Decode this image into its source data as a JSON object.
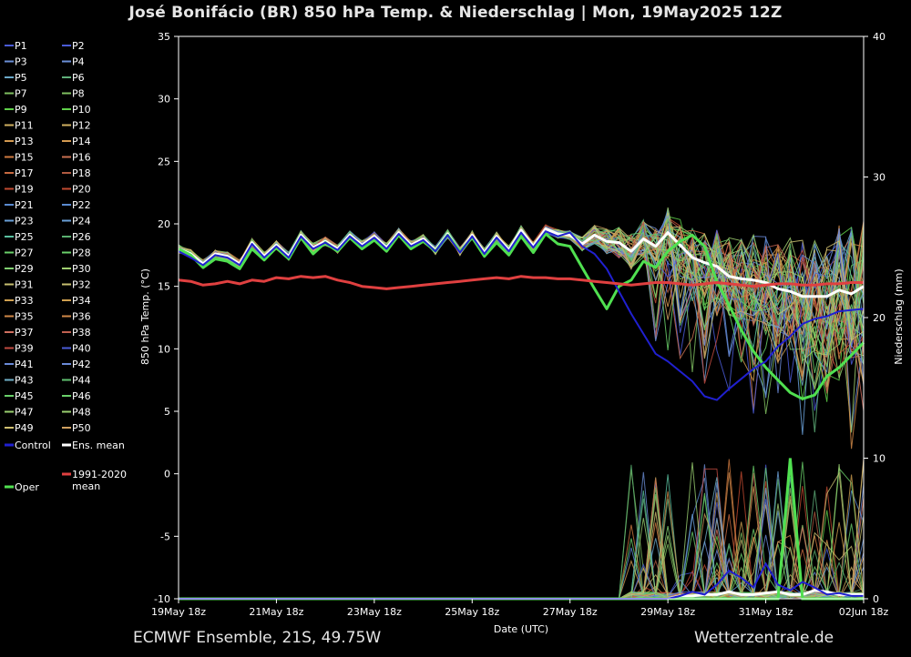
{
  "chart_data": {
    "type": "line",
    "title": "José Bonifácio  (BR)  850 hPa Temp. & Niederschlag | Mon, 19May2025 12Z",
    "xlabel": "Date (UTC)",
    "ylabel": "850 hPa Temp. (°C)",
    "y2label": "Niederschlag (mm)",
    "ylim": [
      -10,
      35
    ],
    "y2lim": [
      0,
      40
    ],
    "yticks": [
      "35",
      "30",
      "25",
      "20",
      "15",
      "10",
      "5",
      "0",
      "-5",
      "-10"
    ],
    "y2ticks": [
      "40",
      "30",
      "20",
      "10",
      "0"
    ],
    "x_steps": 56,
    "step_hours": 6,
    "xtick_labels": [
      "19May 18z",
      "21May 18z",
      "23May 18z",
      "25May 18z",
      "27May 18z",
      "29May 18z",
      "31May 18z",
      "02Jun 18z"
    ],
    "xtick_steps": [
      0,
      8,
      16,
      24,
      32,
      40,
      48,
      56
    ],
    "legend": [
      {
        "label": "P1",
        "color": "#4a5bd6"
      },
      {
        "label": "P2",
        "color": "#4a5bd6"
      },
      {
        "label": "P3",
        "color": "#6b8fd8"
      },
      {
        "label": "P4",
        "color": "#6b8fd8"
      },
      {
        "label": "P5",
        "color": "#6aa8c8"
      },
      {
        "label": "P6",
        "color": "#5fb07a"
      },
      {
        "label": "P7",
        "color": "#7fc060"
      },
      {
        "label": "P8",
        "color": "#7fc060"
      },
      {
        "label": "P9",
        "color": "#5fd04a"
      },
      {
        "label": "P10",
        "color": "#5fd04a"
      },
      {
        "label": "P11",
        "color": "#d0b060"
      },
      {
        "label": "P12",
        "color": "#d0b060"
      },
      {
        "label": "P13",
        "color": "#d49a50"
      },
      {
        "label": "P14",
        "color": "#d49a50"
      },
      {
        "label": "P15",
        "color": "#d07a40"
      },
      {
        "label": "P16",
        "color": "#c87050"
      },
      {
        "label": "P17",
        "color": "#c86a40"
      },
      {
        "label": "P18",
        "color": "#b05a40"
      },
      {
        "label": "P19",
        "color": "#c04a30"
      },
      {
        "label": "P20",
        "color": "#c04a30"
      },
      {
        "label": "P21",
        "color": "#5a8ad0"
      },
      {
        "label": "P22",
        "color": "#5a8ad0"
      },
      {
        "label": "P23",
        "color": "#6aa0d8"
      },
      {
        "label": "P24",
        "color": "#6aa0d8"
      },
      {
        "label": "P25",
        "color": "#5ac0a0"
      },
      {
        "label": "P26",
        "color": "#5ab070"
      },
      {
        "label": "P27",
        "color": "#6ad06a"
      },
      {
        "label": "P28",
        "color": "#6ad06a"
      },
      {
        "label": "P29",
        "color": "#80d070"
      },
      {
        "label": "P30",
        "color": "#a0d070"
      },
      {
        "label": "P31",
        "color": "#c8c070"
      },
      {
        "label": "P32",
        "color": "#c8c070"
      },
      {
        "label": "P33",
        "color": "#d0a050"
      },
      {
        "label": "P34",
        "color": "#d0a050"
      },
      {
        "label": "P35",
        "color": "#d08848"
      },
      {
        "label": "P36",
        "color": "#d08848"
      },
      {
        "label": "P37",
        "color": "#d07060"
      },
      {
        "label": "P38",
        "color": "#c06050"
      },
      {
        "label": "P39",
        "color": "#c04a40"
      },
      {
        "label": "P40",
        "color": "#4a5bd6"
      },
      {
        "label": "P41",
        "color": "#6a8ad8"
      },
      {
        "label": "P42",
        "color": "#6a8ad8"
      },
      {
        "label": "P43",
        "color": "#70b0c8"
      },
      {
        "label": "P44",
        "color": "#5fc070"
      },
      {
        "label": "P45",
        "color": "#6ad06a"
      },
      {
        "label": "P46",
        "color": "#6ad06a"
      },
      {
        "label": "P47",
        "color": "#9ad070"
      },
      {
        "label": "P48",
        "color": "#9ad070"
      },
      {
        "label": "P49",
        "color": "#d0c070"
      },
      {
        "label": "P50",
        "color": "#d0a060"
      }
    ],
    "special_legend": [
      {
        "label": "Control",
        "color": "#2020d0"
      },
      {
        "label": "Ens. mean",
        "color": "#ffffff"
      },
      {
        "label": "1991-2020 mean",
        "color": "#e04040"
      },
      {
        "label": "Oper",
        "color": "#50e050"
      }
    ],
    "series": [
      {
        "name": "Ens. mean",
        "color": "#ffffff",
        "values": [
          18,
          17.6,
          16.8,
          17.6,
          17.4,
          16.8,
          18.5,
          17.4,
          18.3,
          17.4,
          19.1,
          18.1,
          18.6,
          18.0,
          19.1,
          18.3,
          19.0,
          18.1,
          19.3,
          18.3,
          18.8,
          17.9,
          19.2,
          17.8,
          19.1,
          17.7,
          19.0,
          17.9,
          19.5,
          18.2,
          19.6,
          19.2,
          19.1,
          18.4,
          19.1,
          18.6,
          18.5,
          17.8,
          18.8,
          18.2,
          19.3,
          18.3,
          17.3,
          16.9,
          16.6,
          15.8,
          15.6,
          15.5,
          15.3,
          14.8,
          14.6,
          14.2,
          14.2,
          14.2,
          14.7,
          14.4,
          15.0
        ],
        "precip": [
          0,
          0,
          0,
          0,
          0,
          0,
          0,
          0,
          0,
          0,
          0,
          0,
          0,
          0,
          0,
          0,
          0,
          0,
          0,
          0,
          0,
          0,
          0,
          0,
          0,
          0,
          0,
          0,
          0,
          0,
          0,
          0,
          0,
          0,
          0,
          0,
          0,
          0,
          0,
          0,
          0,
          0.2,
          0.2,
          0.3,
          0.3,
          0.5,
          0.3,
          0.3,
          0.4,
          0.5,
          0.3,
          0.3,
          0.6,
          0.5,
          0.3,
          0.3,
          0.3
        ]
      },
      {
        "name": "Oper",
        "color": "#50e050",
        "values": [
          18.0,
          17.5,
          16.5,
          17.2,
          17.0,
          16.4,
          18.0,
          17.1,
          18.1,
          17.2,
          18.9,
          17.6,
          18.5,
          17.8,
          18.9,
          18.0,
          18.7,
          17.8,
          19.1,
          18.0,
          18.6,
          17.8,
          19.1,
          17.8,
          18.9,
          17.4,
          18.5,
          17.5,
          19.0,
          17.7,
          19.2,
          18.4,
          18.2,
          16.5,
          14.8,
          13.2,
          15.0,
          15.5,
          17.0,
          16.5,
          17.8,
          18.6,
          19.1,
          18.2,
          15.4,
          13.5,
          11.5,
          9.8,
          8.5,
          7.5,
          6.5,
          6.0,
          6.3,
          7.8,
          8.5,
          9.5,
          10.5
        ],
        "precip": [
          0,
          0,
          0,
          0,
          0,
          0,
          0,
          0,
          0,
          0,
          0,
          0,
          0,
          0,
          0,
          0,
          0,
          0,
          0,
          0,
          0,
          0,
          0,
          0,
          0,
          0,
          0,
          0,
          0,
          0,
          0,
          0,
          0,
          0,
          0,
          0,
          0,
          0,
          0,
          0,
          0,
          0,
          0,
          0,
          0,
          0,
          0,
          0,
          0,
          0,
          10.0,
          0,
          0,
          0,
          0,
          0,
          0
        ]
      },
      {
        "name": "Control",
        "color": "#2020d0",
        "values": [
          17.8,
          17.3,
          16.7,
          17.5,
          17.3,
          16.7,
          18.4,
          17.3,
          18.2,
          17.3,
          19.0,
          18.0,
          18.5,
          17.9,
          19.0,
          18.2,
          18.9,
          18.0,
          19.2,
          18.2,
          18.7,
          17.8,
          19.1,
          17.7,
          19.0,
          17.6,
          18.9,
          17.8,
          19.3,
          18.1,
          19.4,
          19.0,
          19.3,
          18.2,
          17.6,
          16.4,
          14.6,
          12.8,
          11.2,
          9.6,
          9.0,
          8.2,
          7.4,
          6.2,
          5.9,
          6.8,
          7.6,
          8.4,
          9.0,
          10.2,
          11.0,
          12.0,
          12.4,
          12.6,
          13.0,
          13.1,
          13.2
        ],
        "precip": [
          0,
          0,
          0,
          0,
          0,
          0,
          0,
          0,
          0,
          0,
          0,
          0,
          0,
          0,
          0,
          0,
          0,
          0,
          0,
          0,
          0,
          0,
          0,
          0,
          0,
          0,
          0,
          0,
          0,
          0,
          0,
          0,
          0,
          0,
          0,
          0,
          0,
          0,
          0,
          0,
          0,
          0.2,
          0.5,
          0.3,
          1.0,
          2.0,
          1.5,
          0.8,
          2.5,
          1.0,
          0.6,
          1.2,
          0.8,
          0.3,
          0.4,
          0.2,
          0.2
        ]
      },
      {
        "name": "1991-2020 mean",
        "color": "#e04040",
        "values": [
          15.5,
          15.4,
          15.1,
          15.2,
          15.4,
          15.2,
          15.5,
          15.4,
          15.7,
          15.6,
          15.8,
          15.7,
          15.8,
          15.5,
          15.3,
          15.0,
          14.9,
          14.8,
          14.9,
          15.0,
          15.1,
          15.2,
          15.3,
          15.4,
          15.5,
          15.6,
          15.7,
          15.6,
          15.8,
          15.7,
          15.7,
          15.6,
          15.6,
          15.5,
          15.4,
          15.3,
          15.2,
          15.1,
          15.2,
          15.3,
          15.3,
          15.2,
          15.1,
          15.2,
          15.3,
          15.2,
          15.1,
          15.0,
          15.1,
          15.2,
          15.2,
          15.1,
          15.1,
          15.2,
          15.2,
          15.3,
          15.3
        ]
      }
    ]
  },
  "footer": {
    "left": "ECMWF Ensemble, 21S, 49.75W",
    "right": "Wetterzentrale.de"
  }
}
